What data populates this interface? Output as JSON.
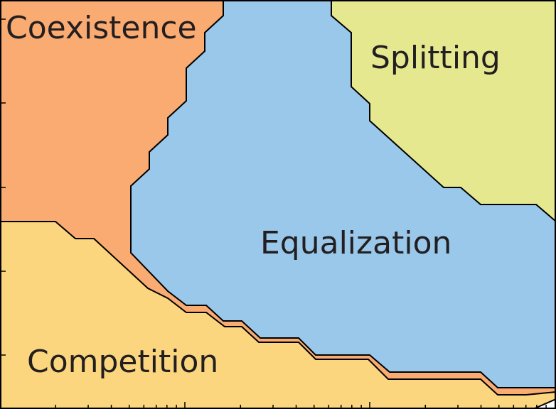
{
  "chart_data": {
    "type": "area",
    "title": "",
    "xlabel": "",
    "ylabel": "",
    "regions": [
      {
        "name": "Coexistence",
        "color": "#f9ab72"
      },
      {
        "name": "Splitting",
        "color": "#e5e88f"
      },
      {
        "name": "Equalization",
        "color": "#99c8eb"
      },
      {
        "name": "Competition",
        "color": "#fbd67f"
      }
    ],
    "grid": false,
    "legend": "none"
  }
}
